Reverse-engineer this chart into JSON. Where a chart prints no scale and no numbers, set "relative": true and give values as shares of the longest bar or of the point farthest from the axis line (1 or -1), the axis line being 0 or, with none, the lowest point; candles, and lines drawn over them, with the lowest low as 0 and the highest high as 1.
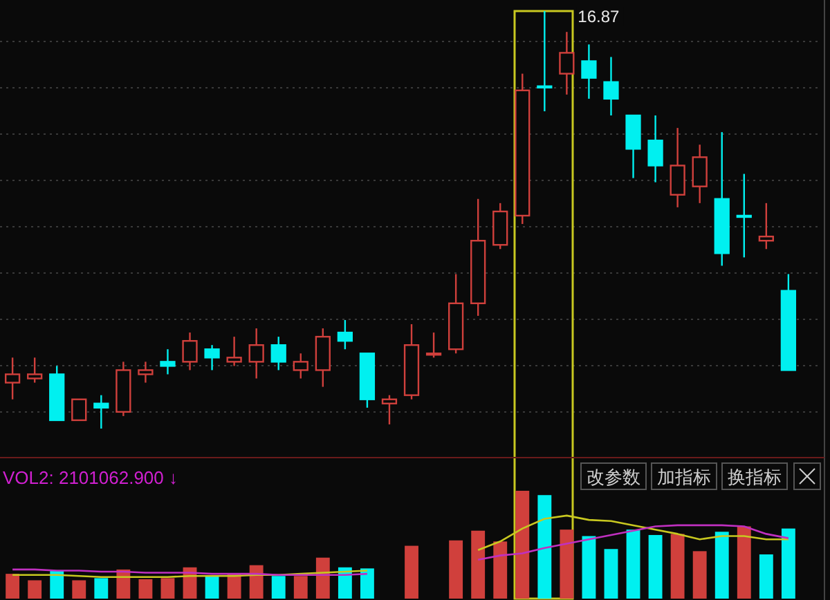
{
  "chart_data": [
    {
      "type": "candlestick",
      "relative": true,
      "grid": true,
      "categories": [
        null,
        null,
        null,
        null,
        null,
        null,
        null,
        null,
        null,
        null,
        null,
        null,
        null,
        null,
        null,
        null,
        null,
        null,
        null,
        null,
        null,
        null,
        null,
        null,
        null,
        null,
        null,
        null,
        null,
        null,
        null,
        null,
        null,
        null,
        null,
        null
      ],
      "ohlc": [
        [
          0.11,
          0.17,
          0.07,
          0.13
        ],
        [
          0.12,
          0.17,
          0.11,
          0.13
        ],
        [
          0.13,
          0.15,
          0.02,
          0.02
        ],
        [
          0.02,
          0.07,
          0.02,
          0.07
        ],
        [
          0.06,
          0.08,
          0,
          0.05
        ],
        [
          0.04,
          0.16,
          0.03,
          0.14
        ],
        [
          0.13,
          0.16,
          0.11,
          0.14
        ],
        [
          0.16,
          0.19,
          0.13,
          0.15
        ],
        [
          0.16,
          0.23,
          0.14,
          0.21
        ],
        [
          0.19,
          0.2,
          0.14,
          0.17
        ],
        [
          0.16,
          0.22,
          0.15,
          0.17
        ],
        [
          0.16,
          0.24,
          0.12,
          0.2
        ],
        [
          0.2,
          0.22,
          0.14,
          0.16
        ],
        [
          0.14,
          0.18,
          0.12,
          0.16
        ],
        [
          0.14,
          0.24,
          0.1,
          0.22
        ],
        [
          0.23,
          0.26,
          0.19,
          0.21
        ],
        [
          0.18,
          0.18,
          0.05,
          0.07
        ],
        [
          0.06,
          0.08,
          0.01,
          0.07
        ],
        [
          0.08,
          0.25,
          0.07,
          0.2
        ],
        [
          0.18,
          0.23,
          0.17,
          0.18
        ],
        [
          0.19,
          0.37,
          0.18,
          0.3
        ],
        [
          0.3,
          0.55,
          0.27,
          0.45
        ],
        [
          0.44,
          0.54,
          0.43,
          0.52
        ],
        [
          0.51,
          0.85,
          0.49,
          0.81
        ],
        [
          0.82,
          1,
          0.76,
          0.82
        ],
        [
          0.85,
          0.95,
          0.8,
          0.9
        ],
        [
          0.88,
          0.92,
          0.79,
          0.84
        ],
        [
          0.83,
          0.89,
          0.75,
          0.79
        ],
        [
          0.75,
          0.75,
          0.6,
          0.67
        ],
        [
          0.69,
          0.75,
          0.59,
          0.63
        ],
        [
          0.56,
          0.72,
          0.53,
          0.63
        ],
        [
          0.58,
          0.68,
          0.54,
          0.65
        ],
        [
          0.55,
          0.71,
          0.39,
          0.42
        ],
        [
          0.51,
          0.61,
          0.41,
          0.51
        ],
        [
          0.45,
          0.54,
          0.43,
          0.46
        ],
        [
          0.33,
          0.37,
          0.14,
          0.14
        ]
      ],
      "colors": [
        "#d0403c",
        "#d0403c",
        "#00f0f0",
        "#d0403c",
        "#00f0f0",
        "#d0403c",
        "#d0403c",
        "#00f0f0",
        "#d0403c",
        "#00f0f0",
        "#d0403c",
        "#d0403c",
        "#00f0f0",
        "#d0403c",
        "#d0403c",
        "#00f0f0",
        "#00f0f0",
        "#d0403c",
        "#d0403c",
        "#d0403c",
        "#d0403c",
        "#d0403c",
        "#d0403c",
        "#d0403c",
        "#00f0f0",
        "#d0403c",
        "#00f0f0",
        "#00f0f0",
        "#00f0f0",
        "#00f0f0",
        "#d0403c",
        "#d0403c",
        "#00f0f0",
        "#00f0f0",
        "#d0403c",
        "#00f0f0"
      ],
      "annotations": [
        "16.87"
      ]
    },
    {
      "type": "bar",
      "relative": true,
      "title": "VOL2: 2101062.900 ↓",
      "categories": [
        null,
        null,
        null,
        null,
        null,
        null,
        null,
        null,
        null,
        null,
        null,
        null,
        null,
        null,
        null,
        null,
        null,
        null,
        null,
        null,
        null,
        null,
        null,
        null,
        null,
        null,
        null,
        null,
        null,
        null,
        null,
        null,
        null,
        null,
        null,
        null
      ],
      "series": [
        {
          "type": "bar",
          "values": [
            0.23,
            0.17,
            0.26,
            0.17,
            0.19,
            0.27,
            0.18,
            0.19,
            0.29,
            0.21,
            0.23,
            0.31,
            0.21,
            0.21,
            0.38,
            0.29,
            0.28,
            null,
            0.49,
            null,
            0.54,
            0.63,
            0.53,
            1,
            0.96,
            0.64,
            0.58,
            0.46,
            0.64,
            0.59,
            0.6,
            0.44,
            0.62,
            0.67,
            0.41,
            0.65
          ],
          "colors": [
            "#d0403c",
            "#d0403c",
            "#00f0f0",
            "#d0403c",
            "#00f0f0",
            "#d0403c",
            "#d0403c",
            "#d0403c",
            "#d0403c",
            "#00f0f0",
            "#d0403c",
            "#d0403c",
            "#00f0f0",
            "#d0403c",
            "#d0403c",
            "#00f0f0",
            "#00f0f0",
            null,
            "#d0403c",
            null,
            "#d0403c",
            "#d0403c",
            "#d0403c",
            "#d0403c",
            "#00f0f0",
            "#d0403c",
            "#00f0f0",
            "#00f0f0",
            "#00f0f0",
            "#00f0f0",
            "#d0403c",
            "#d0403c",
            "#00f0f0",
            "#d0403c",
            "#00f0f0",
            "#00f0f0"
          ]
        },
        {
          "type": "line",
          "color": "#c8c820",
          "values": [
            0.22,
            0.22,
            0.22,
            0.21,
            0.2,
            0.2,
            0.2,
            0.2,
            0.21,
            0.21,
            0.21,
            0.22,
            0.22,
            0.23,
            0.24,
            0.25,
            0.26,
            null,
            null,
            null,
            null,
            0.45,
            0.53,
            0.65,
            0.74,
            0.77,
            0.73,
            0.72,
            0.68,
            0.64,
            0.6,
            0.55,
            0.58,
            0.58,
            0.55,
            0.55
          ]
        },
        {
          "type": "line",
          "color": "#c030c0",
          "values": [
            0.27,
            0.27,
            0.26,
            0.26,
            0.25,
            0.25,
            0.24,
            0.24,
            0.24,
            0.23,
            0.23,
            0.23,
            0.22,
            0.22,
            0.22,
            0.22,
            0.23,
            null,
            null,
            null,
            null,
            0.36,
            0.4,
            0.42,
            0.47,
            0.51,
            0.55,
            0.59,
            0.63,
            0.67,
            0.68,
            0.68,
            0.68,
            0.67,
            0.6,
            0.56
          ]
        }
      ],
      "annotations": [
        "改参数",
        "加指标",
        "换指标"
      ]
    }
  ]
}
